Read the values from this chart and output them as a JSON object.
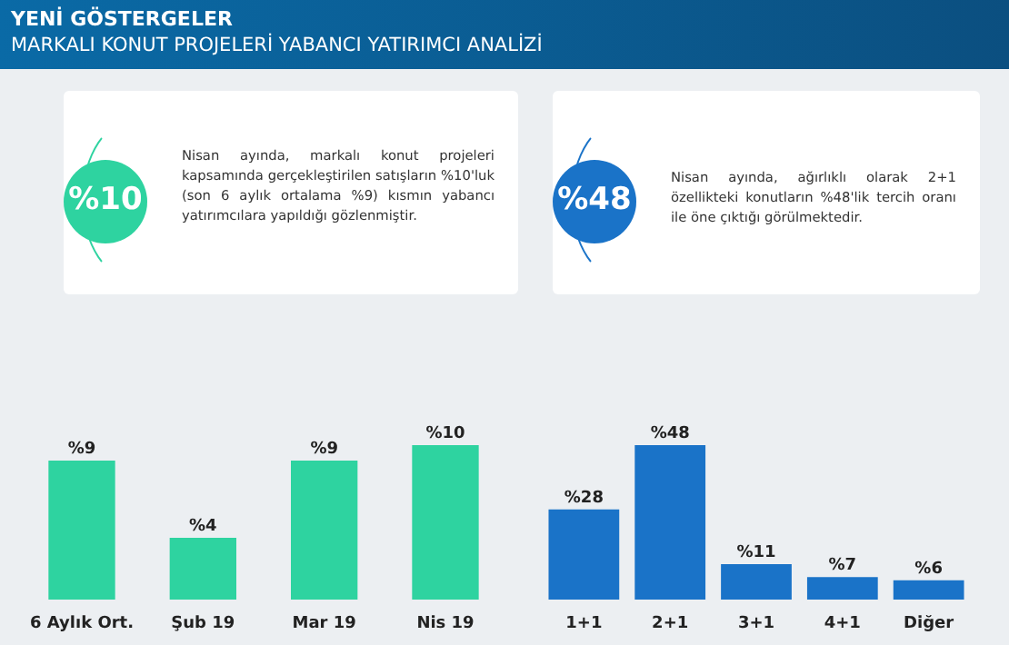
{
  "chart_data": [
    {
      "type": "bar",
      "title": "YENİ GÖSTERGELER",
      "subtitle": "MARKALI KONUT PROJELERİ YABANCI YATIRIMCI ANALİZİ",
      "annotations": [
        "%10",
        "Nisan ayında, markalı konut projeleri kapsamında gerçekleştirilen satışların %10'luk (son 6 aylık ortalama %9) kısmın yabancı yatırımcılara yapıldığı gözlenmiştir."
      ],
      "categories": [
        "6 Aylık Ort.",
        "Şub 19",
        "Mar 19",
        "Nis 19"
      ],
      "values": [
        9,
        4,
        9,
        10
      ],
      "value_labels": [
        "%9",
        "%4",
        "%9",
        "%10"
      ],
      "color": "#2ed3a0"
    },
    {
      "type": "bar",
      "annotations": [
        "%48",
        "Nisan ayında, ağırlıklı olarak 2+1 özellikteki konutların %48'lik tercih oranı ile öne çıktığı görülmektedir."
      ],
      "categories": [
        "1+1",
        "2+1",
        "3+1",
        "4+1",
        "Diğer"
      ],
      "values": [
        28,
        48,
        11,
        7,
        6
      ],
      "value_labels": [
        "%28",
        "%48",
        "%11",
        "%7",
        "%6"
      ],
      "color": "#1a73c8"
    }
  ]
}
